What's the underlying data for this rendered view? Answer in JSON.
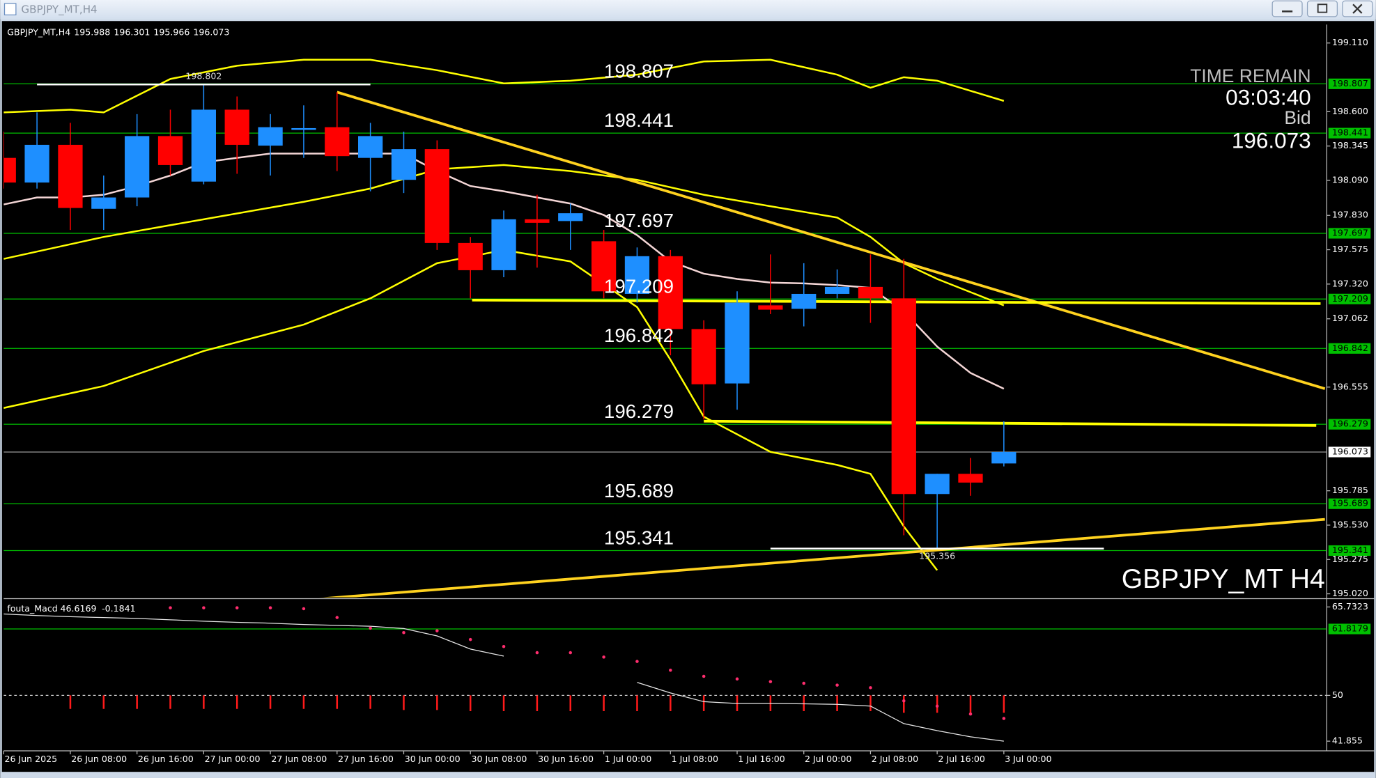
{
  "window": {
    "title": "GBPJPY_MT,H4"
  },
  "chart_data": {
    "type": "candlestick",
    "watermark": "GBPJPY_MT H4",
    "categories": [
      "26 Jun 2025",
      null,
      "26 Jun 08:00",
      null,
      "26 Jun 16:00",
      null,
      "27 Jun 00:00",
      null,
      "27 Jun 08:00",
      null,
      "27 Jun 16:00",
      null,
      "30 Jun 00:00",
      null,
      "30 Jun 08:00",
      null,
      "30 Jun 16:00",
      null,
      "1 Jul 00:00",
      null,
      "1 Jul 08:00",
      null,
      "1 Jul 16:00",
      null,
      "2 Jul 00:00",
      null,
      "2 Jul 08:00",
      null,
      "2 Jul 16:00",
      null,
      "3 Jul 00:00"
    ],
    "open": [
      198.257,
      198.074,
      198.354,
      197.879,
      197.963,
      198.419,
      198.081,
      198.615,
      198.348,
      198.465,
      198.485,
      198.257,
      198.094,
      198.322,
      197.625,
      197.423,
      197.801,
      197.788,
      197.638,
      197.247,
      197.527,
      196.986,
      196.582,
      197.162,
      197.136,
      197.247,
      197.299,
      197.214,
      195.761,
      195.911,
      195.988
    ],
    "high": [
      198.452,
      198.595,
      198.517,
      198.126,
      198.582,
      198.615,
      198.802,
      198.713,
      198.582,
      198.647,
      198.745,
      198.517,
      198.452,
      198.387,
      197.67,
      197.866,
      197.983,
      197.918,
      197.722,
      197.592,
      197.573,
      197.051,
      197.266,
      197.54,
      197.475,
      197.429,
      197.54,
      197.507,
      195.911,
      196.029,
      196.301
    ],
    "low": [
      198.029,
      198.029,
      197.722,
      197.722,
      197.898,
      198.126,
      198.061,
      198.139,
      198.126,
      198.257,
      198.159,
      198.009,
      197.996,
      197.573,
      197.214,
      197.371,
      197.442,
      197.573,
      197.214,
      197.182,
      196.791,
      196.315,
      196.387,
      197.097,
      197.006,
      197.214,
      197.032,
      195.455,
      195.356,
      195.748,
      195.966
    ],
    "close": [
      198.074,
      198.354,
      197.885,
      197.963,
      198.419,
      198.204,
      198.615,
      198.354,
      198.485,
      198.478,
      198.27,
      198.419,
      198.322,
      197.625,
      197.423,
      197.801,
      197.775,
      197.846,
      197.266,
      197.527,
      196.986,
      196.576,
      197.182,
      197.13,
      197.247,
      197.299,
      197.214,
      195.761,
      195.911,
      195.846,
      196.073
    ],
    "up_color": "#1e8fff",
    "down_color": "#ff0000",
    "ylim": [
      194.994,
      199.247
    ],
    "yticks": [
      {
        "value": 199.11,
        "label": "199.110"
      },
      {
        "value": 198.6,
        "label": "198.600"
      },
      {
        "value": 198.345,
        "label": "198.345"
      },
      {
        "value": 198.09,
        "label": "198.090"
      },
      {
        "value": 197.83,
        "label": "197.830"
      },
      {
        "value": 197.575,
        "label": "197.575"
      },
      {
        "value": 197.32,
        "label": "197.320"
      },
      {
        "value": 197.062,
        "label": "197.062"
      },
      {
        "value": 196.555,
        "label": "196.555"
      },
      {
        "value": 195.785,
        "label": "195.785"
      },
      {
        "value": 195.53,
        "label": "195.530"
      },
      {
        "value": 195.275,
        "label": "195.275"
      },
      {
        "value": 195.02,
        "label": "195.020"
      }
    ],
    "levels": [
      198.807,
      198.441,
      197.697,
      197.209,
      196.842,
      196.279,
      195.689,
      195.341
    ],
    "level_color": "#00c000",
    "time_remain": {
      "title": "TIME REMAIN",
      "value": "03:03:40",
      "label": "Bid"
    },
    "overlays": [
      {
        "color": "#f4d6d6",
        "values": [
          197.911,
          197.963,
          197.963,
          197.983,
          198.048,
          198.126,
          198.224,
          198.257,
          198.289,
          198.289,
          198.289,
          198.289,
          198.289,
          198.159,
          198.048,
          198.009,
          197.963,
          197.918,
          197.833,
          197.683,
          197.488,
          197.397,
          197.358,
          197.331,
          197.325,
          197.312,
          197.292,
          197.117,
          196.856,
          196.66,
          196.543
        ]
      },
      {
        "color": "#ffff00",
        "x": [
          0,
          2,
          3,
          5,
          7,
          9,
          11,
          13,
          15,
          17,
          19,
          21,
          23,
          25,
          26,
          27,
          28,
          30
        ],
        "values": [
          198.595,
          198.615,
          198.595,
          198.843,
          198.941,
          198.986,
          198.986,
          198.908,
          198.81,
          198.83,
          198.875,
          198.973,
          198.986,
          198.875,
          198.778,
          198.856,
          198.83,
          198.68
        ]
      },
      {
        "color": "#ffff00",
        "x": [
          0,
          3,
          6,
          9,
          11,
          13,
          15,
          17,
          19,
          21,
          23,
          25,
          26,
          27,
          28,
          30
        ],
        "values": [
          197.507,
          197.67,
          197.801,
          197.931,
          198.029,
          198.172,
          198.204,
          198.159,
          198.094,
          197.983,
          197.898,
          197.814,
          197.67,
          197.475,
          197.358,
          197.162
        ]
      },
      {
        "color": "#ffff00",
        "x": [
          0,
          3,
          6,
          9,
          11,
          13,
          15,
          17,
          19,
          20,
          21,
          23,
          25,
          26,
          27,
          28
        ],
        "values": [
          196.4,
          196.563,
          196.823,
          197.019,
          197.214,
          197.475,
          197.573,
          197.488,
          197.149,
          196.758,
          196.335,
          196.074,
          195.977,
          195.911,
          195.52,
          195.195
        ]
      }
    ],
    "trendlines": [
      {
        "color": "#ffd21f",
        "x": [
          10,
          39.63
        ],
        "values": [
          198.745,
          196.543
        ]
      },
      {
        "color": "#ffff00",
        "x": [
          14.05,
          39.5
        ],
        "values": [
          197.201,
          197.175
        ]
      },
      {
        "color": "#ffff00",
        "x": [
          21,
          39.37
        ],
        "values": [
          196.302,
          196.27
        ]
      },
      {
        "color": "#ffd21f",
        "x": [
          7,
          39.63
        ],
        "values": [
          194.934,
          195.573
        ]
      }
    ],
    "indicator": {
      "name": "fouta_Macd",
      "readings": [
        46.6169,
        -0.1841
      ],
      "ylim": [
        41.855,
        65.7323
      ],
      "yticks": [
        65.7323,
        50,
        41.855
      ],
      "levels": [
        61.8179
      ],
      "midline": 50,
      "line": [
        64.48,
        64.2,
        64.0,
        63.85,
        63.7,
        63.45,
        63.2,
        63.0,
        62.85,
        62.61,
        62.45,
        62.3,
        61.9,
        60.58,
        58.24,
        56.99,
        null,
        null,
        null,
        52.31,
        50.44,
        48.88,
        48.56,
        48.56,
        48.5,
        48.4,
        48.1,
        44.98,
        43.73,
        42.63,
        41.85
      ],
      "dots": [
        null,
        null,
        null,
        null,
        null,
        65.58,
        65.58,
        65.58,
        65.58,
        65.42,
        63.86,
        61.96,
        61.17,
        61.5,
        59.94,
        58.69,
        57.6,
        57.6,
        56.82,
        56.04,
        54.48,
        53.39,
        52.92,
        52.45,
        52.15,
        51.83,
        51.37,
        49.03,
        48.09,
        46.69,
        45.9
      ],
      "histogram": [
        null,
        null,
        47.6,
        47.6,
        47.6,
        47.6,
        47.6,
        47.6,
        47.6,
        47.6,
        47.6,
        47.6,
        47.4,
        47.4,
        47.2,
        47.2,
        47.2,
        47.2,
        47.2,
        47.2,
        47.2,
        47.2,
        47.2,
        47.2,
        47.2,
        47.2,
        47.2,
        46.9,
        46.9,
        46.9,
        46.9
      ]
    }
  }
}
